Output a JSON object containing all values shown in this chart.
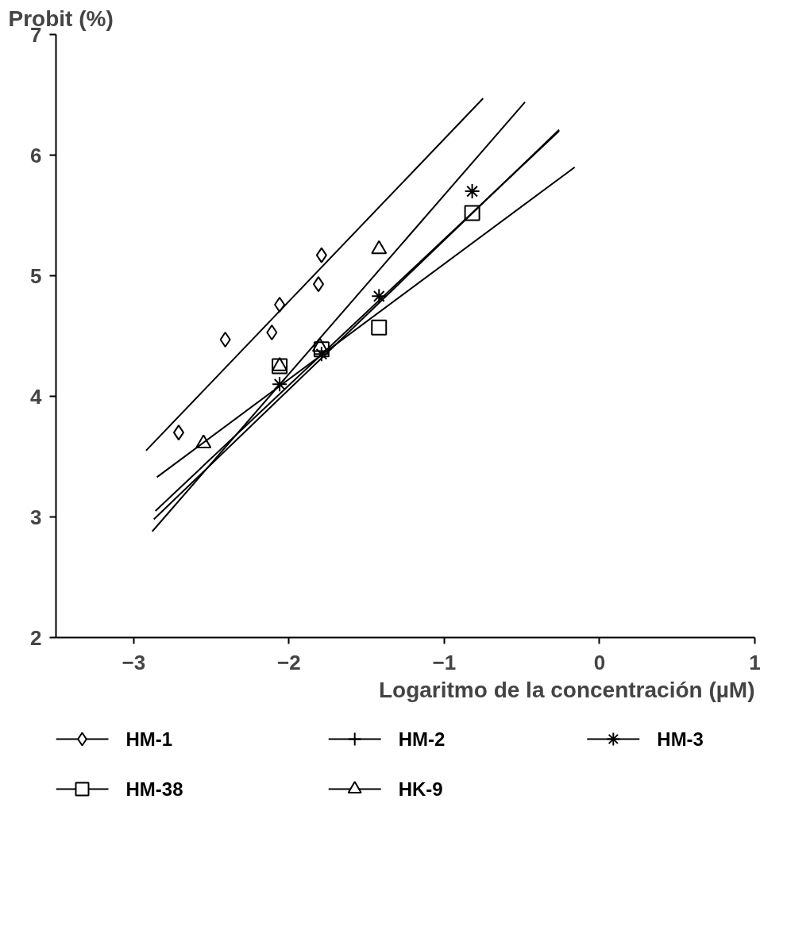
{
  "chart_data": {
    "type": "scatter",
    "xlabel": "Logaritmo de la concentración (µM)",
    "ylabel": "Probit (%)",
    "xlim": [
      -3.5,
      1
    ],
    "xticks": [
      -3,
      -2,
      -1,
      0,
      1
    ],
    "ylim": [
      2,
      7
    ],
    "yticks": [
      2,
      3,
      4,
      5,
      6,
      7
    ],
    "grid": false,
    "legend": "bottom",
    "series": [
      {
        "name": "HM-1",
        "marker": "diamond",
        "color": "#000000",
        "x": [
          -2.71,
          -2.41,
          -2.11,
          -2.06,
          -1.81,
          -1.79
        ],
        "values": [
          3.7,
          4.47,
          4.53,
          4.76,
          4.93,
          5.17
        ]
      },
      {
        "type": "line",
        "color": "#000000",
        "x": [
          -2.92,
          -0.75
        ],
        "values": [
          3.55,
          6.47
        ]
      },
      {
        "name": "HM-2",
        "type": "line",
        "color": "#000000",
        "x": [
          -2.86,
          -0.26
        ],
        "values": [
          3.05,
          6.2
        ]
      },
      {
        "name": "HM-3",
        "marker": "cross",
        "color": "#000000",
        "x": [
          -2.06,
          -1.79,
          -1.42,
          -0.82
        ],
        "values": [
          4.1,
          4.35,
          4.83,
          5.7
        ]
      },
      {
        "type": "line",
        "color": "#000000",
        "x": [
          -2.87,
          -0.26
        ],
        "values": [
          2.98,
          6.21
        ]
      },
      {
        "name": "HM-38",
        "marker": "square",
        "color": "#000000",
        "x": [
          -2.06,
          -1.79,
          -1.42,
          -0.82
        ],
        "values": [
          4.25,
          4.39,
          4.57,
          5.52
        ]
      },
      {
        "type": "line",
        "color": "#000000",
        "x": [
          -2.85,
          -0.16
        ],
        "values": [
          3.33,
          5.9
        ]
      },
      {
        "name": "HK-9",
        "marker": "triangle",
        "color": "#000000",
        "x": [
          -2.55,
          -2.06,
          -1.8,
          -1.42
        ],
        "values": [
          3.61,
          4.25,
          4.41,
          5.22
        ]
      },
      {
        "type": "line",
        "color": "#000000",
        "x": [
          -2.88,
          -0.48
        ],
        "values": [
          2.88,
          6.44
        ]
      }
    ]
  }
}
